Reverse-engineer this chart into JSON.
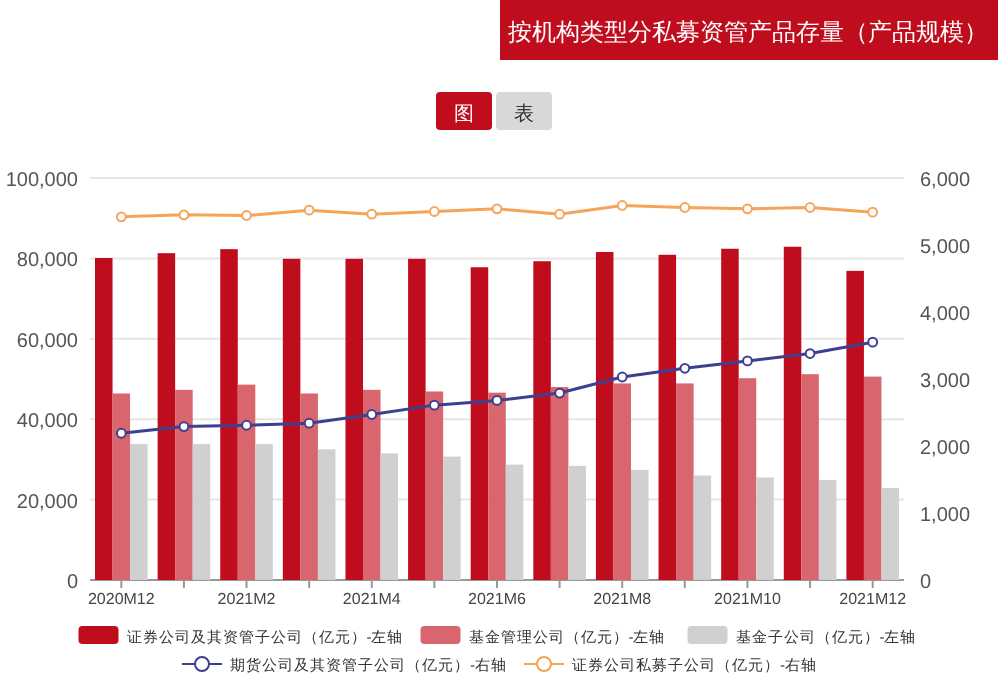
{
  "chart_data": {
    "type": "bar",
    "title": "按机构类型分私募资管产品存量（产品规模）",
    "annotations": [
      "图",
      "表"
    ],
    "categories": [
      "2020M12",
      null,
      "2021M2",
      null,
      "2021M4",
      null,
      "2021M6",
      null,
      "2021M8",
      null,
      "2021M10",
      null,
      "2021M12"
    ],
    "series": [
      {
        "name": "证券公司及其资管子公司（亿元）-左轴",
        "color": "#c00d1e",
        "values": [
          80100,
          81300,
          82300,
          79900,
          79900,
          79900,
          77800,
          79300,
          81600,
          80900,
          82400,
          82900,
          76900
        ]
      },
      {
        "name": "基金管理公司（亿元）-左轴",
        "color": "#d9666e",
        "values": [
          46400,
          47300,
          48600,
          46400,
          47300,
          46900,
          46600,
          48000,
          48900,
          48900,
          50200,
          51200,
          50600
        ]
      },
      {
        "name": "基金子公司（亿元）-左轴",
        "color": "#d0d0d0",
        "values": [
          33800,
          33800,
          33800,
          32500,
          31500,
          30700,
          28700,
          28400,
          27400,
          26000,
          25500,
          24900,
          22900
        ]
      },
      {
        "name": "期货公司及其资管子公司（亿元）-右轴",
        "type": "line",
        "axis": "y2",
        "color": "#3e3f8e",
        "values": [
          2190,
          2290,
          2310,
          2340,
          2470,
          2610,
          2680,
          2790,
          3030,
          3160,
          3270,
          3380,
          3550
        ]
      },
      {
        "name": "证券公司私募子公司（亿元）-右轴",
        "type": "line",
        "axis": "y2",
        "color": "#f5a55a",
        "values": [
          5420,
          5450,
          5440,
          5520,
          5460,
          5500,
          5540,
          5460,
          5590,
          5560,
          5540,
          5560,
          5490
        ]
      }
    ],
    "ylim": [
      0,
      100000
    ],
    "yticks": [
      {
        "value": 0,
        "label": "0"
      },
      {
        "value": 20000,
        "label": "20,000"
      },
      {
        "value": 40000,
        "label": "40,000"
      },
      {
        "value": 60000,
        "label": "60,000"
      },
      {
        "value": 80000,
        "label": "80,000"
      },
      {
        "value": 100000,
        "label": "100,000"
      }
    ],
    "y2lim": [
      0,
      6000
    ],
    "y2ticks": [
      {
        "value": 0,
        "label": "0"
      },
      {
        "value": 1000,
        "label": "1,000"
      },
      {
        "value": 2000,
        "label": "2,000"
      },
      {
        "value": 3000,
        "label": "3,000"
      },
      {
        "value": 4000,
        "label": "4,000"
      },
      {
        "value": 5000,
        "label": "5,000"
      },
      {
        "value": 6000,
        "label": "6,000"
      }
    ],
    "grid": "y",
    "legend": "bottom",
    "marker": "circle",
    "line_style": "solid"
  }
}
